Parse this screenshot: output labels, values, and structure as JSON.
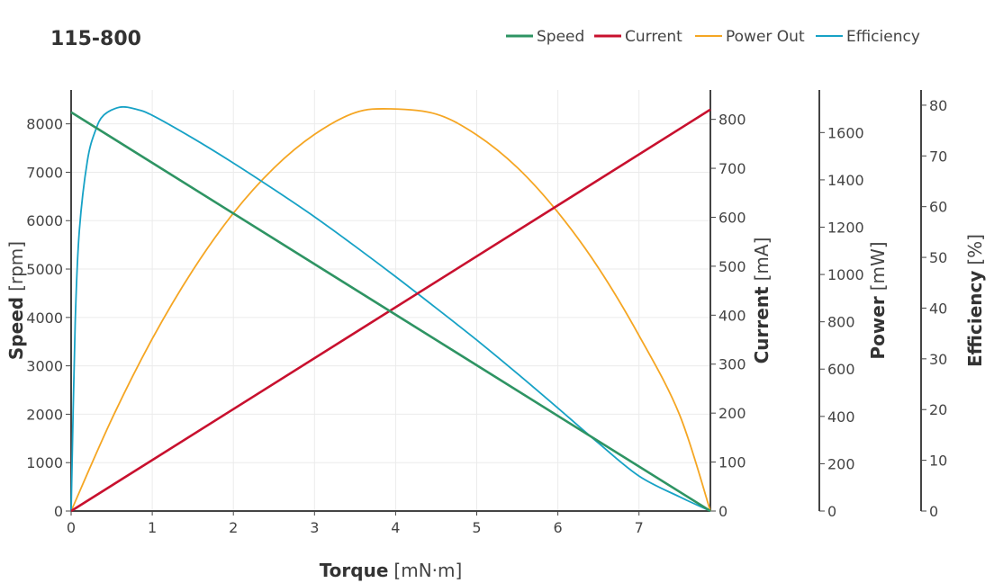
{
  "chart_data": {
    "type": "line",
    "title": "115-800",
    "x": {
      "label": "Torque",
      "unit": "[mN·m]",
      "range": [
        0,
        7.88
      ],
      "ticks": [
        0,
        1,
        2,
        3,
        4,
        5,
        6,
        7
      ]
    },
    "axes": {
      "speed": {
        "label": "Speed",
        "unit": "[rpm]",
        "range": [
          0,
          8700
        ],
        "ticks": [
          0,
          1000,
          2000,
          3000,
          4000,
          5000,
          6000,
          7000,
          8000
        ]
      },
      "current": {
        "label": "Current",
        "unit": "[mA]",
        "range": [
          0,
          860
        ],
        "ticks": [
          0,
          100,
          200,
          300,
          400,
          500,
          600,
          700,
          800
        ]
      },
      "power": {
        "label": "Power",
        "unit": "[mW]",
        "range": [
          0,
          1780
        ],
        "ticks": [
          0,
          200,
          400,
          600,
          800,
          1000,
          1200,
          1400,
          1600
        ]
      },
      "efficiency": {
        "label": "Efficiency",
        "unit": "[%]",
        "range": [
          0,
          83
        ],
        "ticks": [
          0,
          10,
          20,
          30,
          40,
          50,
          60,
          70,
          80
        ]
      }
    },
    "series": [
      {
        "name": "Speed",
        "axis": "speed",
        "color": "#2e9463",
        "x": [
          0,
          7.88
        ],
        "y": [
          8240,
          0
        ]
      },
      {
        "name": "Current",
        "axis": "current",
        "color": "#c8102e",
        "x": [
          0,
          7.88
        ],
        "y": [
          0,
          820
        ]
      },
      {
        "name": "Power Out",
        "axis": "power",
        "color": "#f5a623",
        "x": [
          0,
          0.5,
          1,
          1.5,
          2,
          2.5,
          3,
          3.5,
          3.94,
          4.5,
          5,
          5.5,
          6,
          6.5,
          7,
          7.5,
          7.88
        ],
        "y": [
          0,
          388,
          728,
          1018,
          1259,
          1450,
          1592,
          1684,
          1700,
          1678,
          1590,
          1452,
          1263,
          1028,
          742,
          407,
          0
        ]
      },
      {
        "name": "Efficiency",
        "axis": "efficiency",
        "color": "#17a2c6",
        "x": [
          0,
          0.05,
          0.1,
          0.2,
          0.3,
          0.4,
          0.6,
          0.8,
          1,
          1.5,
          2,
          2.5,
          3,
          3.5,
          4,
          4.5,
          5,
          5.5,
          6,
          6.5,
          7,
          7.5,
          7.88
        ],
        "y": [
          0,
          37,
          55,
          69,
          75,
          78,
          79.6,
          79.2,
          78,
          73.5,
          68.6,
          63.4,
          58,
          52.2,
          46.2,
          40,
          33.7,
          27.1,
          20.3,
          13.4,
          6.9,
          2.8,
          0
        ]
      }
    ],
    "legend": {
      "position": "top-right",
      "items": [
        "Speed",
        "Current",
        "Power Out",
        "Efficiency"
      ]
    },
    "grid": true
  }
}
